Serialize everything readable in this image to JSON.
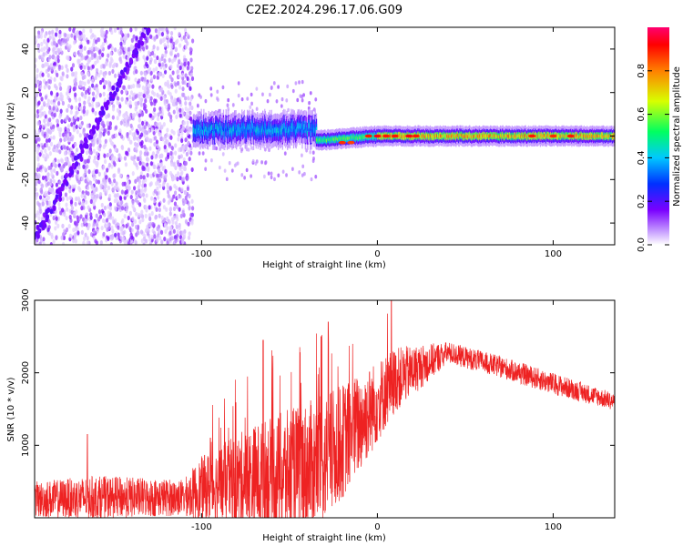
{
  "title": "C2E2.2024.296.17.06.G09",
  "chart_data": [
    {
      "type": "heatmap",
      "xlabel": "Height of straight line (km)",
      "ylabel": "Frequency (Hz)",
      "xlim": [
        -195,
        135
      ],
      "ylim": [
        -50,
        50
      ],
      "x_ticks": [
        -100,
        0,
        100
      ],
      "y_ticks": [
        -40,
        -20,
        0,
        20,
        40
      ],
      "colorbar": {
        "label": "Normalized spectral amplitude",
        "range": [
          0,
          1
        ],
        "ticks": [
          0.0,
          0.2,
          0.4,
          0.6,
          0.8
        ],
        "colors": [
          "#ffffff",
          "#c8a0ff",
          "#7a00ff",
          "#0030ff",
          "#00c8ff",
          "#00ff60",
          "#d8ff00",
          "#ff8000",
          "#ff0000",
          "#ff0070"
        ]
      },
      "bands": [
        {
          "x_start": -195,
          "x_end": -105,
          "description": "diffuse purple noise, |f| up to 50 Hz",
          "amplitude": 0.1
        },
        {
          "x_start": -105,
          "x_end": -35,
          "center_hz": 3,
          "halfwidth_hz": 5,
          "amplitude": 0.4
        },
        {
          "x_start": -35,
          "x_end": 0,
          "center_hz": -2,
          "halfwidth_hz": 3,
          "amplitude": 0.55
        },
        {
          "x_start": 0,
          "x_end": 135,
          "center_hz": 0,
          "halfwidth_hz": 3,
          "amplitude": 0.75
        }
      ],
      "diagonal_traces": [
        {
          "from": [
            -195,
            -48
          ],
          "to": [
            -130,
            50
          ]
        }
      ]
    },
    {
      "type": "line",
      "xlabel": "Height of straight line (km)",
      "ylabel": "SNR (10 * v/v)",
      "xlim": [
        -195,
        135
      ],
      "ylim": [
        0,
        3000
      ],
      "x_ticks": [
        -100,
        0,
        100
      ],
      "y_ticks": [
        1000,
        2000,
        3000
      ],
      "color": "#ee2222",
      "envelope": [
        {
          "x": -195,
          "base": 250,
          "spread": 250
        },
        {
          "x": -160,
          "base": 280,
          "spread": 300
        },
        {
          "x": -110,
          "base": 280,
          "spread": 250
        },
        {
          "x": -100,
          "base": 400,
          "spread": 450
        },
        {
          "x": -70,
          "base": 550,
          "spread": 750
        },
        {
          "x": -50,
          "base": 600,
          "spread": 900
        },
        {
          "x": -30,
          "base": 800,
          "spread": 900
        },
        {
          "x": -10,
          "base": 1300,
          "spread": 700
        },
        {
          "x": 10,
          "base": 1900,
          "spread": 450
        },
        {
          "x": 40,
          "base": 2280,
          "spread": 150
        },
        {
          "x": 70,
          "base": 2080,
          "spread": 150
        },
        {
          "x": 100,
          "base": 1850,
          "spread": 150
        },
        {
          "x": 135,
          "base": 1600,
          "spread": 120
        }
      ],
      "spikes": [
        {
          "x": 8,
          "y": 3000
        },
        {
          "x": -28,
          "y": 2700
        },
        {
          "x": -32,
          "y": 2500
        },
        {
          "x": -65,
          "y": 2450
        },
        {
          "x": -95,
          "y": 1100
        },
        {
          "x": -165,
          "y": 1150
        }
      ]
    }
  ]
}
